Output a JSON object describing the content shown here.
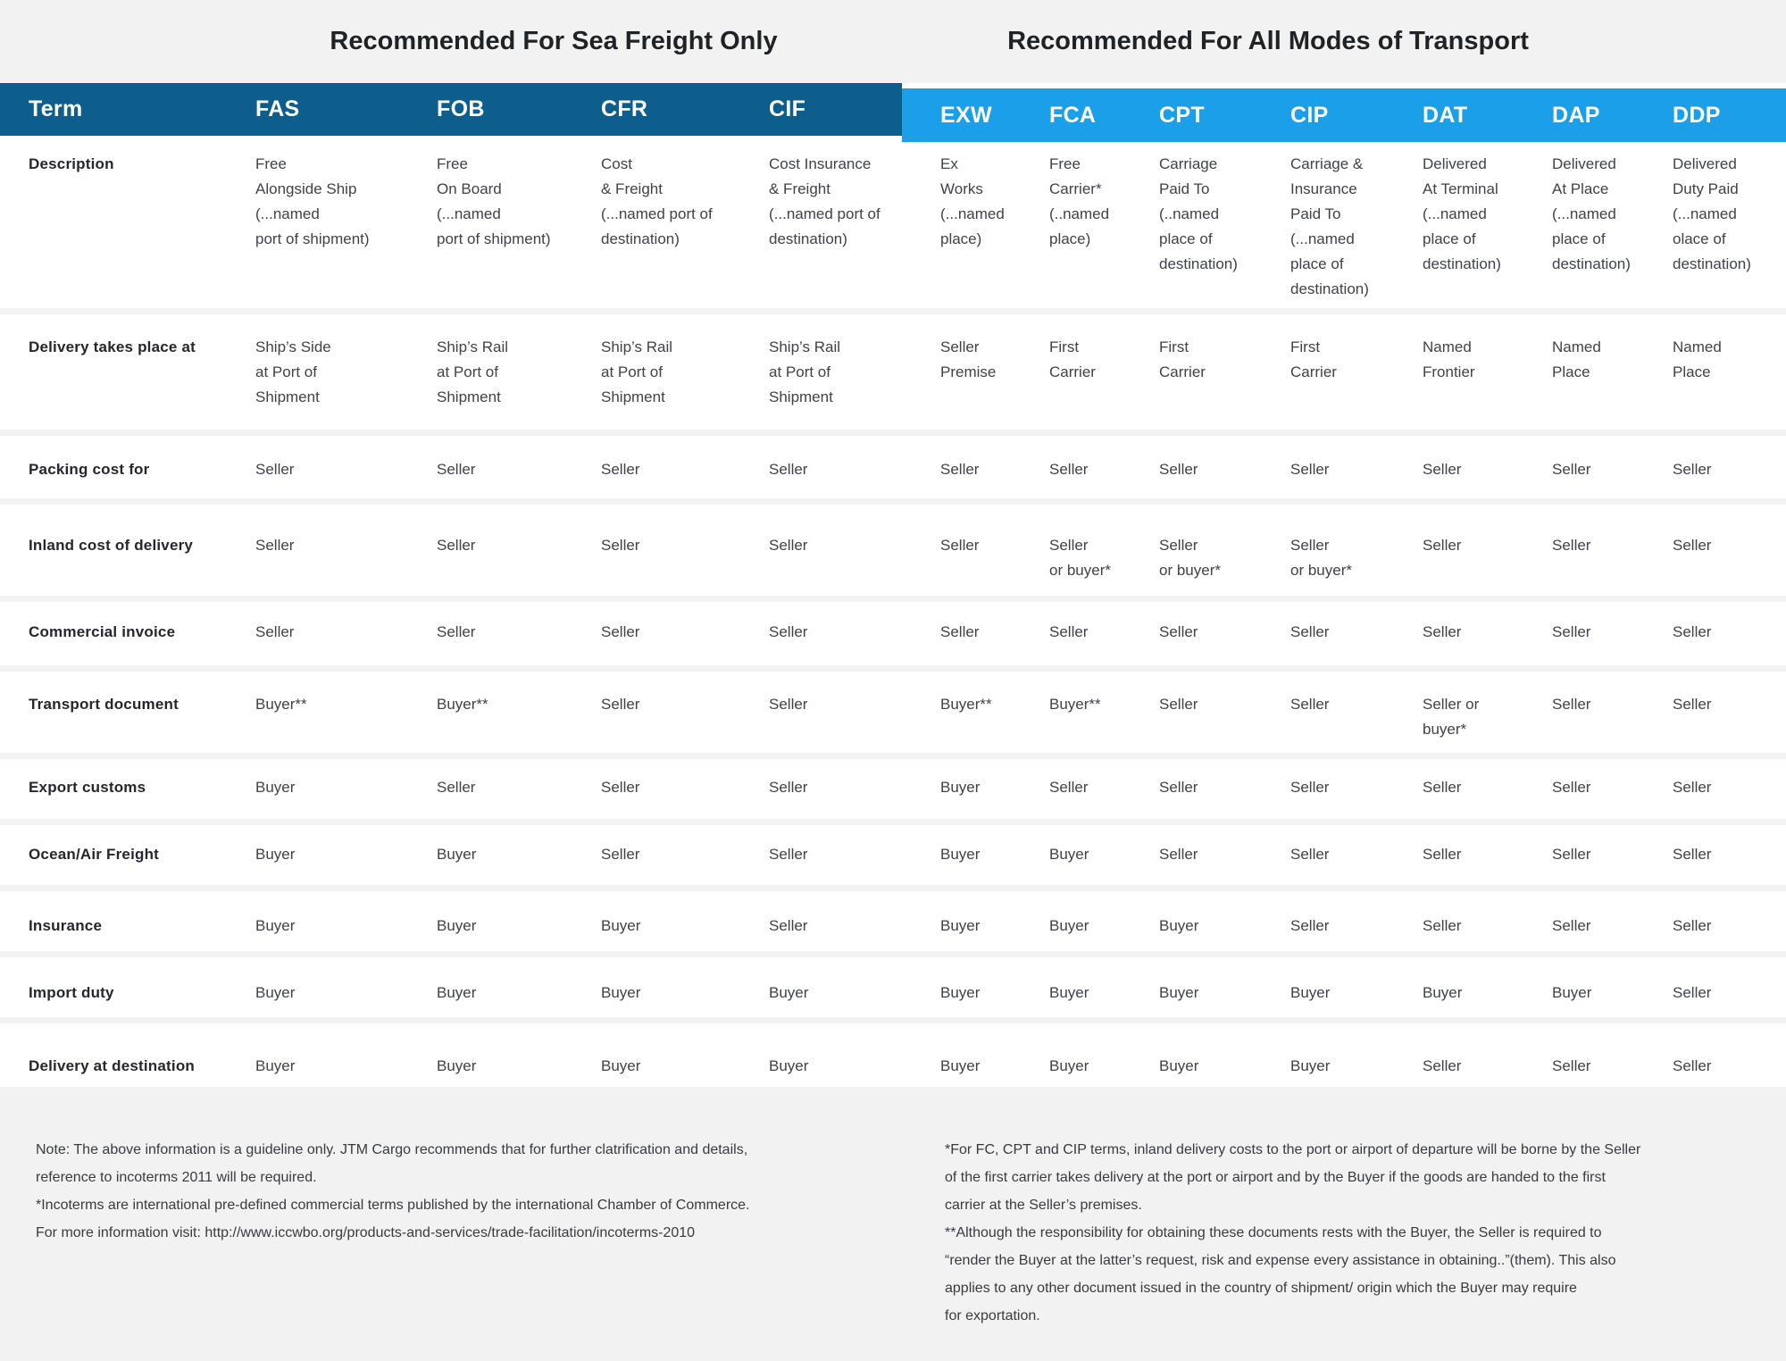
{
  "sections": {
    "sea_title": "Recommended For Sea Freight Only",
    "all_title": "Recommended For All Modes of Transport"
  },
  "colors": {
    "dark_blue": "#0d5e8c",
    "light_blue": "#1a9fe8",
    "page_bg": "#f2f2f2",
    "row_bg": "#ffffff"
  },
  "table": {
    "term_header": "Term",
    "sea_columns": [
      "FAS",
      "FOB",
      "CFR",
      "CIF"
    ],
    "all_columns": [
      "EXW",
      "FCA",
      "CPT",
      "CIP",
      "DAT",
      "DAP",
      "DDP"
    ],
    "rows": [
      {
        "key": "description",
        "label": "Description",
        "cells": [
          "Free\nAlongside Ship\n(...named\nport of shipment)",
          "Free\nOn Board\n(...named\nport of shipment)",
          "Cost\n& Freight\n(...named port of\ndestination)",
          "Cost Insurance\n& Freight\n(...named port of\ndestination)",
          "Ex\nWorks\n(...named\nplace)",
          "Free\nCarrier*\n(..named\nplace)",
          "Carriage\nPaid To\n(..named\nplace of\ndestination)",
          "Carriage &\nInsurance\nPaid To\n(...named\nplace of\ndestination)",
          "Delivered\nAt Terminal\n(...named\nplace of\ndestination)",
          "Delivered\nAt Place\n(...named\nplace of\ndestination)",
          "Delivered\nDuty Paid\n(...named\nolace of\ndestination)"
        ]
      },
      {
        "key": "delivery",
        "label": "Delivery takes place at",
        "cells": [
          "Ship’s Side\nat Port of\nShipment",
          "Ship’s Rail\nat Port of\nShipment",
          "Ship’s Rail\nat Port of\nShipment",
          "Ship’s Rail\nat Port of\nShipment",
          "Seller\nPremise",
          "First\nCarrier",
          "First\nCarrier",
          "First\nCarrier",
          "Named\nFrontier",
          "Named\nPlace",
          "Named\nPlace"
        ]
      },
      {
        "key": "packing",
        "label": "Packing cost for",
        "cells": [
          "Seller",
          "Seller",
          "Seller",
          "Seller",
          "Seller",
          "Seller",
          "Seller",
          "Seller",
          "Seller",
          "Seller",
          "Seller"
        ]
      },
      {
        "key": "inland",
        "label": "Inland cost of delivery",
        "cells": [
          "Seller",
          "Seller",
          "Seller",
          "Seller",
          "Seller",
          "Seller\nor buyer*",
          "Seller\nor buyer*",
          "Seller\nor buyer*",
          "Seller",
          "Seller",
          "Seller"
        ]
      },
      {
        "key": "invoice",
        "label": "Commercial invoice",
        "cells": [
          "Seller",
          "Seller",
          "Seller",
          "Seller",
          "Seller",
          "Seller",
          "Seller",
          "Seller",
          "Seller",
          "Seller",
          "Seller"
        ]
      },
      {
        "key": "transport",
        "label": "Transport document",
        "cells": [
          "Buyer**",
          "Buyer**",
          "Seller",
          "Seller",
          "Buyer**",
          "Buyer**",
          "Seller",
          "Seller",
          "Seller or\nbuyer*",
          "Seller",
          "Seller"
        ]
      },
      {
        "key": "export",
        "label": "Export customs",
        "cells": [
          "Buyer",
          "Seller",
          "Seller",
          "Seller",
          "Buyer",
          "Seller",
          "Seller",
          "Seller",
          "Seller",
          "Seller",
          "Seller"
        ]
      },
      {
        "key": "ocean",
        "label": "Ocean/Air Freight",
        "cells": [
          "Buyer",
          "Buyer",
          "Seller",
          "Seller",
          "Buyer",
          "Buyer",
          "Seller",
          "Seller",
          "Seller",
          "Seller",
          "Seller"
        ]
      },
      {
        "key": "insurance",
        "label": "Insurance",
        "cells": [
          "Buyer",
          "Buyer",
          "Buyer",
          "Seller",
          "Buyer",
          "Buyer",
          "Buyer",
          "Seller",
          "Seller",
          "Seller",
          "Seller"
        ]
      },
      {
        "key": "import",
        "label": "Import duty",
        "cells": [
          "Buyer",
          "Buyer",
          "Buyer",
          "Buyer",
          "Buyer",
          "Buyer",
          "Buyer",
          "Buyer",
          "Buyer",
          "Buyer",
          "Seller"
        ]
      },
      {
        "key": "destination",
        "label": "Delivery at destination",
        "cells": [
          "Buyer",
          "Buyer",
          "Buyer",
          "Buyer",
          "Buyer",
          "Buyer",
          "Buyer",
          "Buyer",
          "Seller",
          "Seller",
          "Seller"
        ]
      }
    ]
  },
  "notes": {
    "left": [
      "Note: The above information is a guideline only. JTM Cargo recommends that for further clatrification and details,",
      "reference to incoterms 2011 will be required.",
      "*Incoterms are international pre-defined commercial terms published by the international Chamber of Commerce.",
      "For more information visit: http://www.iccwbo.org/products-and-services/trade-facilitation/incoterms-2010"
    ],
    "right": [
      "*For FC, CPT and CIP terms, inland delivery costs to the port or airport of departure will be borne by the Seller",
      "of the first carrier takes delivery at the port or airport and by the Buyer if the goods are handed to the first",
      "carrier at the Seller’s premises.",
      "**Although the responsibility for obtaining these documents rests with the Buyer, the Seller is required to",
      " “render the Buyer at the latter’s request, risk and expense every assistance in obtaining..”(them). This also",
      "applies to any other document issued in the country of shipment/ origin which the Buyer may require",
      "for exportation."
    ]
  }
}
